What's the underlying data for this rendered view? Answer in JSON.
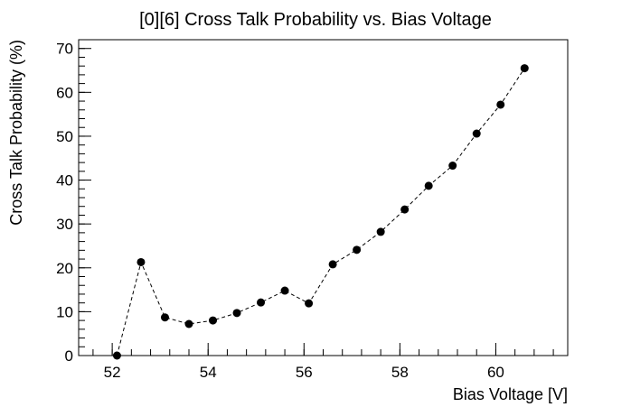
{
  "chart_data": {
    "type": "scatter",
    "title": "[0][6] Cross Talk Probability vs. Bias Voltage",
    "xlabel": "Bias Voltage [V]",
    "ylabel": "Cross Talk Probability (%)",
    "xlim": [
      51.3,
      61.5
    ],
    "ylim": [
      0,
      72
    ],
    "x_ticks": [
      52,
      54,
      56,
      58,
      60
    ],
    "y_ticks": [
      0,
      10,
      20,
      30,
      40,
      50,
      60,
      70
    ],
    "x_minor_step": 0.4,
    "y_minor_step": 2,
    "grid": false,
    "line_style": "dashed",
    "marker": "circle",
    "color": "#000000",
    "series": [
      {
        "x": [
          52.1,
          52.6,
          53.1,
          53.6,
          54.1,
          54.6,
          55.1,
          55.6,
          56.1,
          56.6,
          57.1,
          57.6,
          58.1,
          58.6,
          59.1,
          59.6,
          60.1,
          60.6
        ],
        "y": [
          0.0,
          21.3,
          8.7,
          7.2,
          8.0,
          9.7,
          12.1,
          14.8,
          11.9,
          20.8,
          24.1,
          28.2,
          33.3,
          38.7,
          43.3,
          50.6,
          57.2,
          65.5
        ]
      }
    ]
  }
}
